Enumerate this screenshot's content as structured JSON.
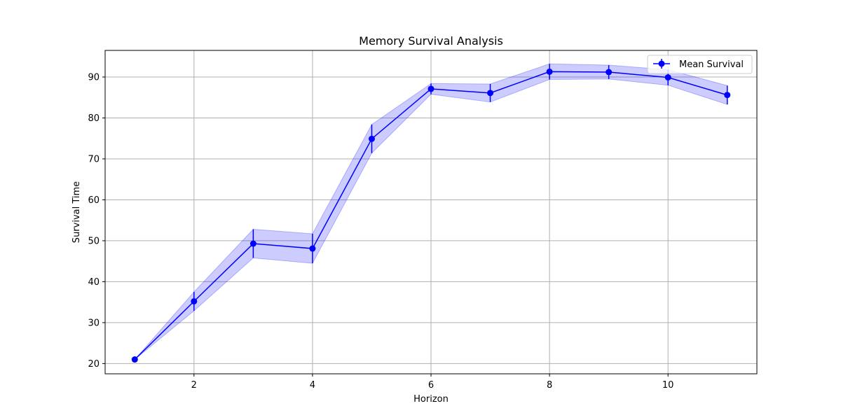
{
  "chart_data": {
    "type": "line",
    "title": "Memory Survival Analysis",
    "xlabel": "Horizon",
    "ylabel": "Survival Time",
    "xlim": [
      0.5,
      11.5
    ],
    "ylim": [
      17.5,
      96.5
    ],
    "xticks": [
      2,
      4,
      6,
      8,
      10
    ],
    "yticks": [
      20,
      30,
      40,
      50,
      60,
      70,
      80,
      90
    ],
    "grid": true,
    "legend_position": "top-right",
    "series": [
      {
        "name": "Mean Survival",
        "color": "#0000ff",
        "band_color": "#0000ff",
        "x": [
          1,
          2,
          3,
          4,
          5,
          6,
          7,
          8,
          9,
          10,
          11
        ],
        "y": [
          21.0,
          35.2,
          49.3,
          48.1,
          74.9,
          87.1,
          86.1,
          91.3,
          91.2,
          89.9,
          85.6
        ],
        "err": [
          0.0,
          2.3,
          3.5,
          3.6,
          3.5,
          1.3,
          2.2,
          1.9,
          1.7,
          1.9,
          2.3
        ]
      }
    ]
  }
}
